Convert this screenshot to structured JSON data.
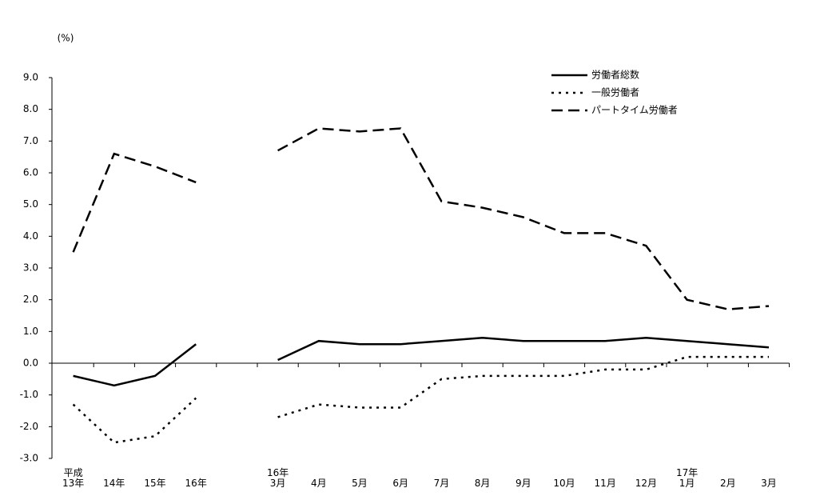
{
  "chart_data": {
    "type": "line",
    "y_label": "(%)",
    "categories": [
      "平成\n13年",
      "14年",
      "15年",
      "16年",
      null,
      "16年\n3月",
      "4月",
      "5月",
      "6月",
      "7月",
      "8月",
      "9月",
      "10月",
      "11月",
      "12月",
      "17年\n1月",
      "2月",
      "3月"
    ],
    "series": [
      {
        "name": "労働者総数",
        "color": "#000000",
        "dash": "solid",
        "values": [
          -0.4,
          -0.7,
          -0.4,
          0.6,
          null,
          0.1,
          0.7,
          0.6,
          0.6,
          0.7,
          0.8,
          0.7,
          0.7,
          0.7,
          0.8,
          0.7,
          0.6,
          0.5
        ]
      },
      {
        "name": "一般労働者",
        "color": "#000000",
        "dash": "dotted",
        "values": [
          -1.3,
          -2.5,
          -2.3,
          -1.1,
          null,
          -1.7,
          -1.3,
          -1.4,
          -1.4,
          -0.5,
          -0.4,
          -0.4,
          -0.4,
          -0.2,
          -0.2,
          0.2,
          0.2,
          0.2
        ]
      },
      {
        "name": "パートタイム労働者",
        "color": "#000000",
        "dash": "dashed",
        "values": [
          3.5,
          6.6,
          6.2,
          5.7,
          null,
          6.7,
          7.4,
          7.3,
          7.4,
          5.1,
          4.9,
          4.6,
          4.1,
          4.1,
          3.7,
          2.0,
          1.7,
          1.8
        ]
      }
    ],
    "ylim": [
      -3,
      9
    ],
    "yticks": [
      {
        "value": -3,
        "label": "-3.0"
      },
      {
        "value": -2,
        "label": "-2.0"
      },
      {
        "value": -1,
        "label": "-1.0"
      },
      {
        "value": 0,
        "label": "0.0"
      },
      {
        "value": 1,
        "label": "1.0"
      },
      {
        "value": 2,
        "label": "2.0"
      },
      {
        "value": 3,
        "label": "3.0"
      },
      {
        "value": 4,
        "label": "4.0"
      },
      {
        "value": 5,
        "label": "5.0"
      },
      {
        "value": 6,
        "label": "6.0"
      },
      {
        "value": 7,
        "label": "7.0"
      },
      {
        "value": 8,
        "label": "8.0"
      },
      {
        "value": 9,
        "label": "9.0"
      }
    ],
    "grid": false,
    "legend": "top-right"
  }
}
